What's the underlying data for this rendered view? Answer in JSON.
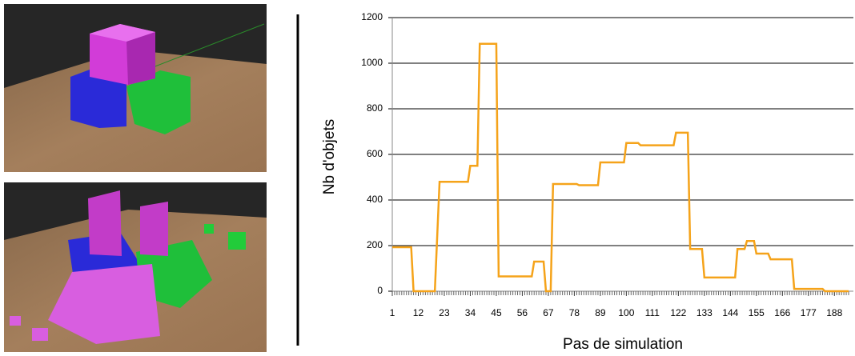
{
  "chart_data": {
    "type": "line",
    "x_label": "Pas de simulation",
    "y_label": "Nb d'objets",
    "x": [
      1,
      9,
      10,
      19,
      21,
      33,
      34,
      37,
      38,
      45,
      46,
      60,
      61,
      65,
      66,
      68,
      69,
      79,
      80,
      88,
      89,
      99,
      100,
      105,
      106,
      120,
      121,
      126,
      127,
      132,
      133,
      146,
      147,
      150,
      151,
      154,
      155,
      160,
      161,
      170,
      171,
      183,
      184,
      194
    ],
    "series": [
      {
        "color": "#f5a31a",
        "values": [
          193,
          193,
          0,
          0,
          480,
          480,
          550,
          550,
          1085,
          1085,
          65,
          65,
          130,
          130,
          0,
          0,
          470,
          470,
          465,
          465,
          565,
          565,
          650,
          650,
          640,
          640,
          695,
          695,
          185,
          185,
          60,
          60,
          185,
          185,
          220,
          220,
          165,
          165,
          140,
          140,
          10,
          10,
          0,
          0
        ]
      }
    ],
    "xlim": [
      1,
      194
    ],
    "xticks": [
      1,
      12,
      23,
      34,
      45,
      56,
      67,
      78,
      89,
      100,
      111,
      122,
      133,
      144,
      155,
      166,
      177,
      188
    ],
    "ylim": [
      0,
      1200
    ],
    "yticks": [
      0,
      200,
      400,
      600,
      800,
      1000,
      1200
    ],
    "grid": true
  }
}
